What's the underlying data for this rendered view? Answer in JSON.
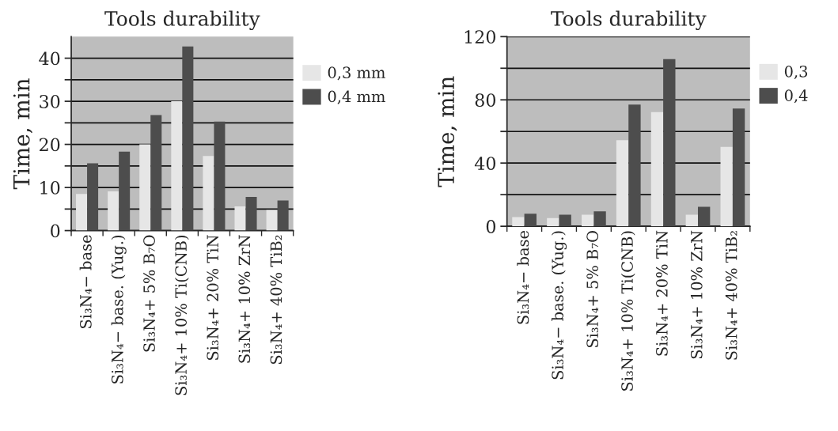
{
  "chart_data": [
    {
      "type": "bar",
      "title": "Tools durability",
      "ylabel": "Time, min",
      "categories": [
        "Si₃N₄− base",
        "Si₃N₄− base. (Yug.)",
        "Si₃N₄+ 5% B₇O",
        "Si₃N₄+ 10% Ti(CNB)",
        "Si₃N₄+ 20% TiN",
        "Si₃N₄+ 10% ZrN",
        "Si₃N₄+ 40% TiB₂"
      ],
      "series": [
        {
          "name": "0,3 mm",
          "color": "#e6e6e6",
          "values": [
            8.5,
            9.1,
            20,
            30,
            17.3,
            5.6,
            4.8
          ]
        },
        {
          "name": "0,4 mm",
          "color": "#4d4d4d",
          "values": [
            15.6,
            18.3,
            26.8,
            42.7,
            25.3,
            7.8,
            7.0
          ]
        }
      ],
      "ylim": [
        0,
        45
      ],
      "yticks": [
        0,
        {
          "value": 5,
          "label": null
        },
        10,
        {
          "value": 15,
          "label": null
        },
        20,
        {
          "value": 25,
          "label": null
        },
        30,
        {
          "value": 35,
          "label": null
        },
        40
      ],
      "grid": "y",
      "legend": "right"
    },
    {
      "type": "bar",
      "title": "Tools durability",
      "ylabel": "Time, min",
      "categories": [
        "Si₃N₄− base",
        "Si₃N₄− base. (Yug.)",
        "Si₃N₄+ 5% B₇O",
        "Si₃N₄+ 10% Ti(CNB)",
        "Si₃N₄+ 20% TiN",
        "Si₃N₄+ 10% ZrN",
        "Si₃N₄+ 40% TiB₂"
      ],
      "series": [
        {
          "name": "0,3",
          "color": "#e6e6e6",
          "values": [
            5.8,
            5.2,
            7.3,
            54.5,
            72.3,
            7.3,
            50.2
          ]
        },
        {
          "name": "0,4",
          "color": "#4d4d4d",
          "values": [
            8,
            7.3,
            9.5,
            77,
            105.8,
            12.3,
            74.5
          ]
        }
      ],
      "ylim": [
        0,
        120
      ],
      "yticks": [
        0,
        {
          "value": 20,
          "label": null
        },
        40,
        {
          "value": 60,
          "label": null
        },
        80,
        {
          "value": 100,
          "label": null
        },
        120
      ],
      "grid": "y",
      "legend": "right"
    }
  ]
}
